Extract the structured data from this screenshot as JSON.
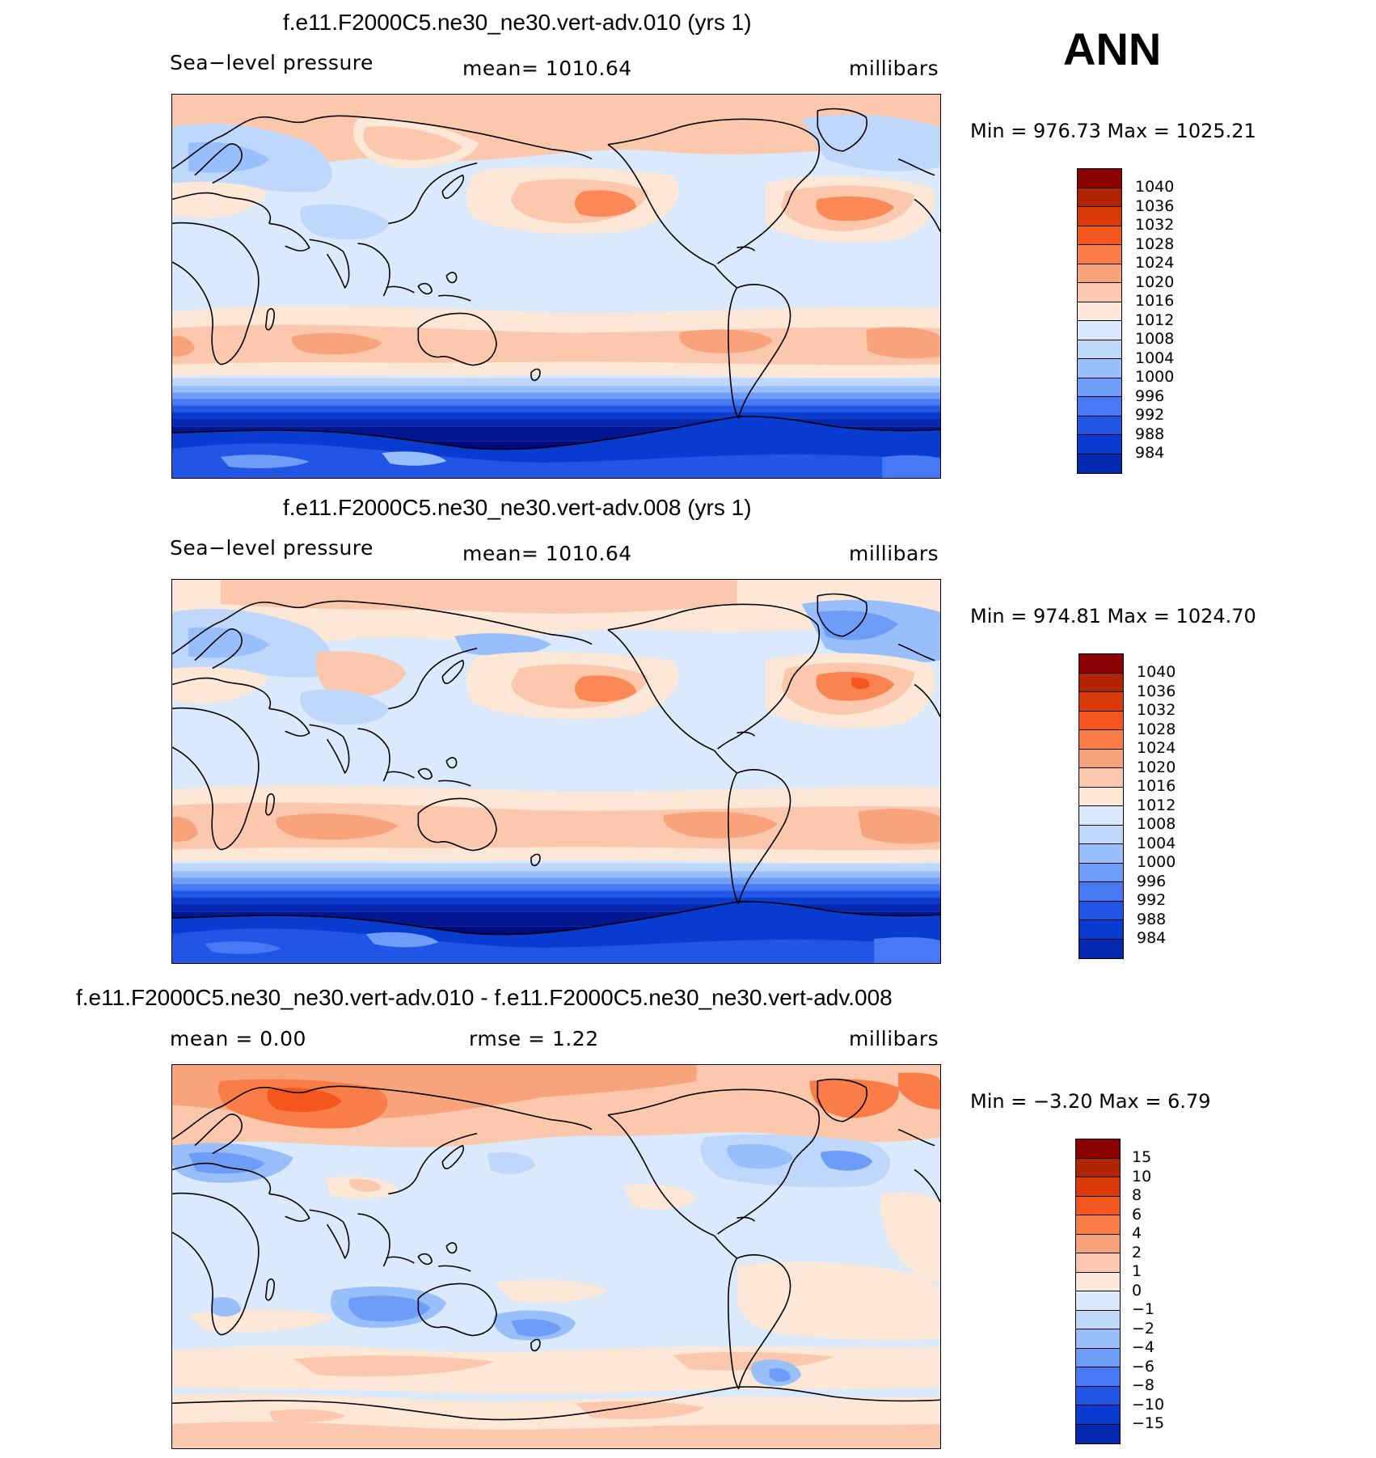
{
  "season": "ANN",
  "palette": {
    "slp": [
      "#8b0000",
      "#b22400",
      "#d93a08",
      "#f5561e",
      "#fa7c47",
      "#f9a37c",
      "#fcc8ad",
      "#fde8d8",
      "#dae9fb",
      "#bfd7fb",
      "#98befb",
      "#6d9df7",
      "#4779f5",
      "#2055e6",
      "#0a3bd0",
      "#0528b0",
      "#011690",
      "#000a80"
    ],
    "diff": [
      "#8b0000",
      "#b22400",
      "#d93a08",
      "#f5561e",
      "#fa7c47",
      "#f9a37c",
      "#fcc8ad",
      "#fde8d8",
      "#dae9fb",
      "#bfd7fb",
      "#98befb",
      "#6d9df7",
      "#4779f5",
      "#2055e6",
      "#0a3bd0",
      "#0528b0",
      "#011690"
    ]
  },
  "panels": [
    {
      "title": "f.e11.F2000C5.ne30_ne30.vert-adv.010 (yrs 1)",
      "variable": "Sea−level pressure",
      "mean_label": "mean=  1010.64",
      "units": "millibars",
      "minmax": "Min  =  976.73  Max  =  1025.21",
      "levels": [
        "1040",
        "1036",
        "1032",
        "1028",
        "1024",
        "1020",
        "1016",
        "1012",
        "1008",
        "1004",
        "1000",
        "996",
        "992",
        "988",
        "984"
      ]
    },
    {
      "title": "f.e11.F2000C5.ne30_ne30.vert-adv.008 (yrs 1)",
      "variable": "Sea−level pressure",
      "mean_label": "mean=  1010.64",
      "units": "millibars",
      "minmax": "Min  =  974.81  Max  =  1024.70",
      "levels": [
        "1040",
        "1036",
        "1032",
        "1028",
        "1024",
        "1020",
        "1016",
        "1012",
        "1008",
        "1004",
        "1000",
        "996",
        "992",
        "988",
        "984"
      ]
    },
    {
      "title": "f.e11.F2000C5.ne30_ne30.vert-adv.010 - f.e11.F2000C5.ne30_ne30.vert-adv.008",
      "mean_label": "mean  =     0.00",
      "rmse_label": "rmse  =      1.22",
      "units": "millibars",
      "minmax": "Min  =    −3.20  Max  =     6.79",
      "levels": [
        "15",
        "10",
        "8",
        "6",
        "4",
        "2",
        "1",
        "0",
        "−1",
        "−2",
        "−4",
        "−6",
        "−8",
        "−10",
        "−15"
      ]
    }
  ]
}
